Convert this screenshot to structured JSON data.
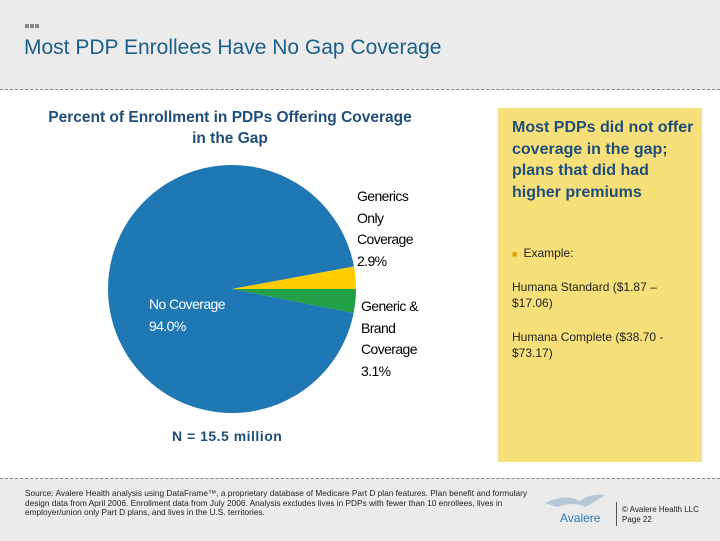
{
  "header": {
    "title": "Most PDP Enrollees Have No Gap Coverage"
  },
  "chart_data": {
    "type": "pie",
    "title": "Percent of Enrollment in PDPs Offering Coverage in the Gap",
    "slices": [
      {
        "label": "No Coverage",
        "value": 94.0,
        "display": "94.0%",
        "color": "#1f78b4"
      },
      {
        "label": "Generics Only Coverage",
        "value": 2.9,
        "display": "2.9%",
        "color": "#ffcc00"
      },
      {
        "label": "Generic & Brand Coverage",
        "value": 3.1,
        "display": "3.1%",
        "color": "#22a046"
      }
    ],
    "annotation": "N = 15.5 million"
  },
  "callout": {
    "heading": "Most PDPs did not offer coverage in the gap; plans that did had higher premiums",
    "bullet": "Example:",
    "examples": [
      "Humana Standard ($1.87 – $17.06)",
      "Humana Complete ($38.70 - $73.17)"
    ]
  },
  "footer": {
    "source": "Source:  Avalere Health analysis using DataFrame™, a proprietary database of Medicare Part D plan features. Plan benefit and formulary design data from April 2006.  Enrollment data from July 2006.  Analysis excludes lives in PDPs with fewer than 10 enrollees, lives in employer/union only Part D plans, and lives in the U.S. territories.",
    "logo": "Avalere",
    "copyright": "© Avalere Health LLC",
    "page": "Page 22"
  }
}
